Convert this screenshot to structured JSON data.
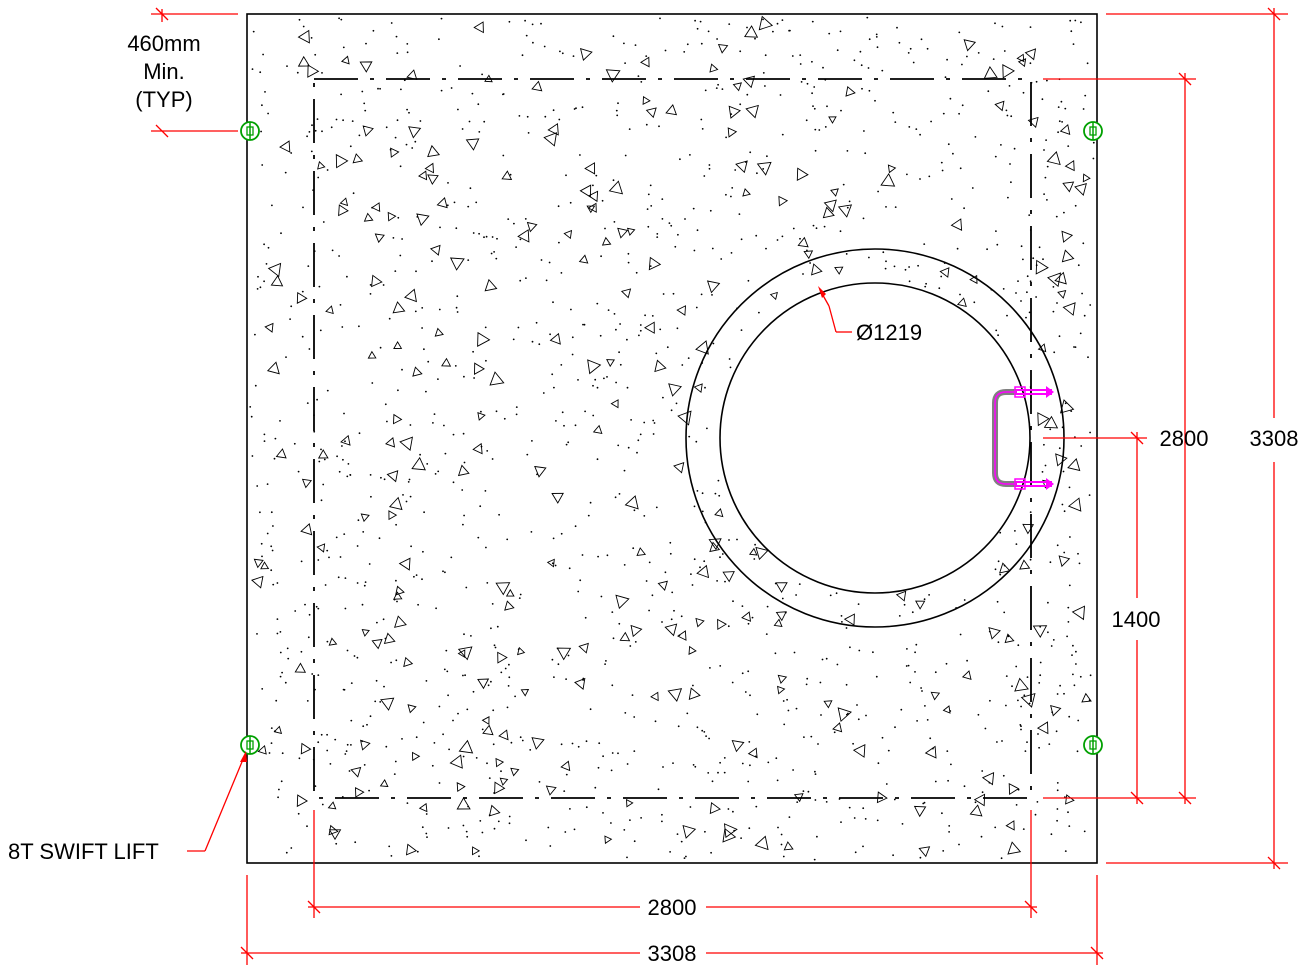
{
  "slab": {
    "width_label": "3308",
    "height_label": "3308",
    "opening_width_label": "2800",
    "opening_height_label": "2800",
    "offset_label": "1400",
    "diameter_label": "Ø1219",
    "edge_note": {
      "line1": "460mm",
      "line2": "Min.",
      "line3": "(TYP)"
    },
    "lift_note": "8T SWIFT LIFT"
  },
  "colors": {
    "dimension": "#ff0000",
    "outline": "#000000",
    "lifter": "#00a000",
    "step_iron": "#ff00ff",
    "step_iron_body": "#808080"
  },
  "icons": {
    "lifter": "swift-lift-anchor-icon",
    "step": "step-iron-icon"
  }
}
